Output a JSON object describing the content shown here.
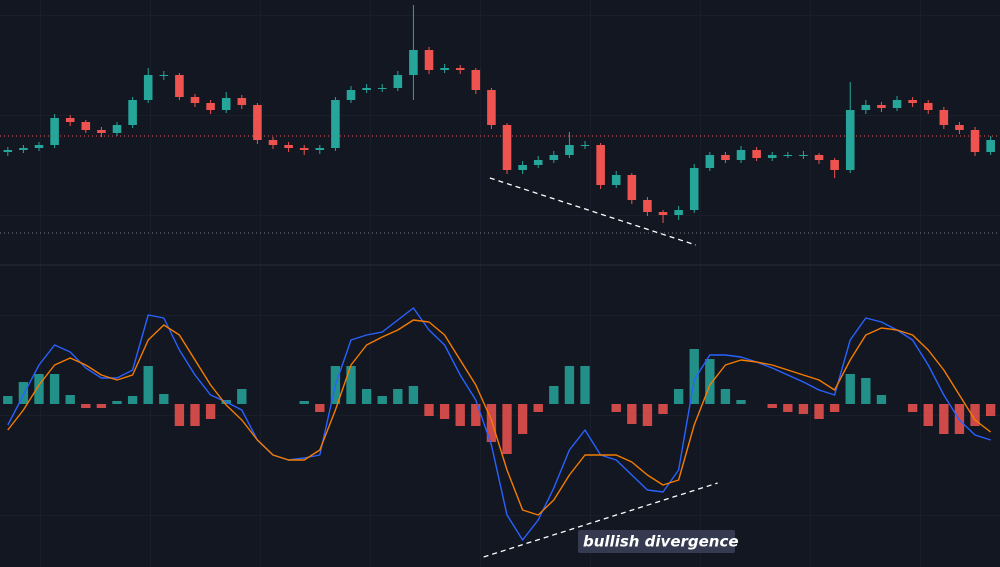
{
  "chart_data": [
    {
      "type": "candlestick",
      "xlim": [
        -0.5,
        63.6
      ],
      "ylim": [
        0,
        260
      ],
      "up_color": "#26a69a",
      "down_color": "#ef5350",
      "open": [
        108,
        110,
        112,
        115,
        142,
        138,
        130,
        127,
        135,
        160,
        185,
        185,
        163,
        157,
        150,
        162,
        155,
        120,
        115,
        112,
        110,
        112,
        160,
        170,
        172,
        172,
        185,
        210,
        190,
        192,
        190,
        170,
        135,
        90,
        95,
        100,
        105,
        115,
        115,
        75,
        85,
        60,
        48,
        45,
        50,
        92,
        105,
        100,
        110,
        102,
        105,
        105,
        105,
        100,
        90,
        150,
        155,
        152,
        160,
        157,
        150,
        135,
        130,
        108
      ],
      "high": [
        113,
        115,
        118,
        146,
        145,
        140,
        133,
        138,
        163,
        192,
        189,
        187,
        166,
        160,
        168,
        165,
        157,
        123,
        118,
        115,
        115,
        163,
        174,
        176,
        176,
        189,
        255,
        213,
        196,
        195,
        192,
        172,
        137,
        99,
        104,
        109,
        128,
        119,
        117,
        89,
        87,
        63,
        50,
        54,
        96,
        108,
        108,
        114,
        113,
        108,
        108,
        109,
        107,
        102,
        178,
        160,
        158,
        164,
        163,
        160,
        153,
        138,
        133,
        124
      ],
      "low": [
        104,
        107,
        109,
        112,
        134,
        127,
        123,
        124,
        132,
        157,
        180,
        160,
        153,
        146,
        147,
        151,
        116,
        111,
        108,
        105,
        106,
        109,
        157,
        167,
        168,
        169,
        160,
        186,
        187,
        186,
        166,
        131,
        86,
        86,
        92,
        97,
        102,
        111,
        71,
        72,
        56,
        44,
        37,
        40,
        47,
        89,
        97,
        97,
        99,
        99,
        102,
        101,
        96,
        82,
        87,
        146,
        148,
        149,
        153,
        146,
        131,
        126,
        104,
        105
      ],
      "close": [
        110,
        112,
        115,
        142,
        138,
        130,
        127,
        135,
        160,
        185,
        185,
        163,
        157,
        150,
        162,
        155,
        120,
        115,
        112,
        110,
        112,
        160,
        170,
        172,
        172,
        185,
        210,
        190,
        192,
        190,
        170,
        135,
        90,
        95,
        100,
        105,
        115,
        115,
        75,
        85,
        60,
        48,
        45,
        50,
        92,
        105,
        100,
        110,
        102,
        105,
        105,
        105,
        100,
        90,
        150,
        155,
        152,
        160,
        157,
        150,
        135,
        130,
        108,
        120
      ],
      "levels": [
        {
          "value": 124,
          "color": "#ef5350"
        },
        {
          "value": 27,
          "color": "#787b86"
        }
      ],
      "trendline": {
        "from": [
          30.9,
          82
        ],
        "to": [
          44.1,
          15
        ],
        "color": "#ffffff"
      }
    },
    {
      "type": "macd",
      "xlim": [
        -0.5,
        63.6
      ],
      "ylim": [
        -163,
        134
      ],
      "series": [
        {
          "color": "#2962ff",
          "values": [
            -21,
            9,
            39,
            59,
            52,
            36,
            26,
            26,
            34,
            89,
            86,
            54,
            29,
            9,
            2,
            -6,
            -36,
            -51,
            -56,
            -54,
            -51,
            19,
            64,
            69,
            72,
            84,
            96,
            74,
            59,
            29,
            4,
            -41,
            -111,
            -136,
            -116,
            -84,
            -46,
            -26,
            -51,
            -56,
            -71,
            -86,
            -88,
            -66,
            24,
            49,
            49,
            47,
            42,
            36,
            29,
            22,
            14,
            9,
            64,
            86,
            82,
            74,
            64,
            39,
            9,
            -16,
            -31,
            -36
          ]
        },
        {
          "color": "#f57c00",
          "values": [
            -26,
            -6,
            19,
            39,
            46,
            39,
            29,
            24,
            29,
            64,
            79,
            69,
            44,
            19,
            -1,
            -16,
            -36,
            -51,
            -56,
            -56,
            -46,
            -6,
            39,
            59,
            67,
            74,
            84,
            82,
            69,
            44,
            19,
            -16,
            -66,
            -106,
            -111,
            -96,
            -71,
            -51,
            -51,
            -51,
            -58,
            -71,
            -81,
            -76,
            -21,
            19,
            39,
            44,
            42,
            39,
            34,
            29,
            24,
            14,
            44,
            69,
            76,
            74,
            69,
            54,
            34,
            9,
            -16,
            -28
          ]
        }
      ],
      "histogram": [
        8,
        22,
        30,
        30,
        9,
        -4,
        -4,
        3,
        8,
        38,
        10,
        -22,
        -22,
        -15,
        4,
        15,
        0,
        0,
        0,
        3,
        -8,
        38,
        38,
        15,
        8,
        15,
        18,
        -12,
        -15,
        -22,
        -22,
        -38,
        -50,
        -30,
        -8,
        18,
        38,
        38,
        0,
        -8,
        -20,
        -22,
        -10,
        15,
        55,
        45,
        15,
        4,
        0,
        -4,
        -8,
        -10,
        -15,
        -8,
        30,
        26,
        9,
        0,
        -8,
        -22,
        -30,
        -30,
        -22,
        -12
      ],
      "hist_up_color": "#26a69a",
      "hist_down_color": "#ef5350",
      "trendline": {
        "from": [
          30.5,
          -153
        ],
        "to": [
          45.5,
          -79
        ],
        "color": "#ffffff"
      },
      "annotation": "bullish divergence"
    }
  ]
}
